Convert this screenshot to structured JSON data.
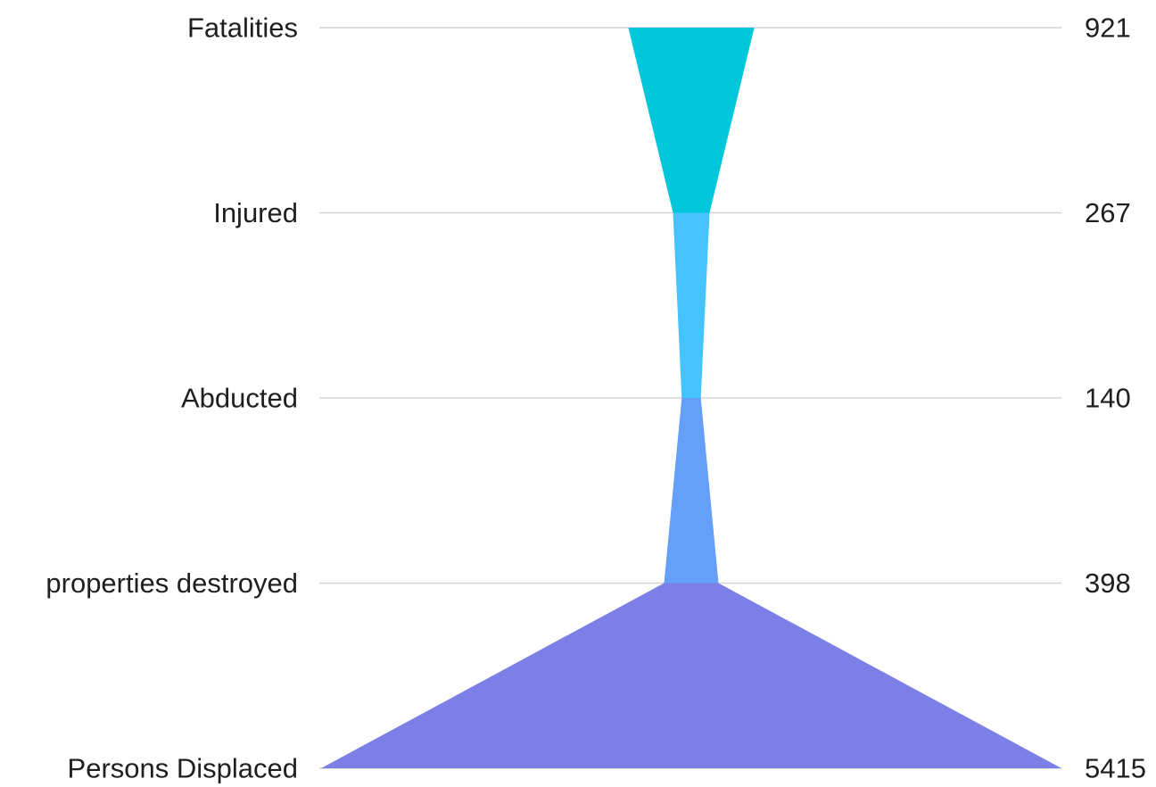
{
  "chart_data": {
    "type": "funnel",
    "title": "",
    "stages": [
      {
        "label": "Fatalities",
        "value": 921,
        "value_text": "921",
        "color": "#00c7dc"
      },
      {
        "label": "Injured",
        "value": 267,
        "value_text": "267",
        "color": "#45c3fd"
      },
      {
        "label": "Abducted",
        "value": 140,
        "value_text": "140",
        "color": "#64a0fa"
      },
      {
        "label": "properties destroyed",
        "value": 398,
        "value_text": "398",
        "color": "#6b8ef0"
      },
      {
        "label": "Persons Displaced",
        "value": 5415,
        "value_text": "5415",
        "color": "#7b7fe6"
      }
    ],
    "segment_colors": [
      "#00c7dc",
      "#45c3fd",
      "#64a0fa",
      "#7b7fe6"
    ],
    "grid": true,
    "legend": "none"
  }
}
